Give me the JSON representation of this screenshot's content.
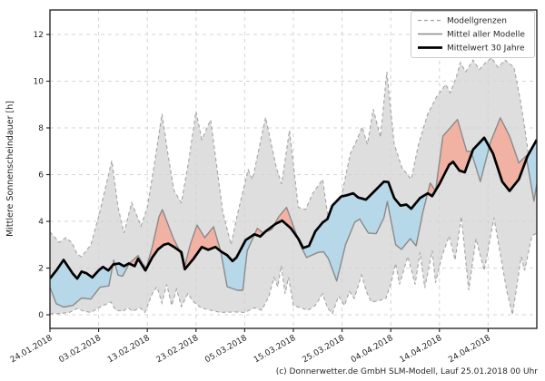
{
  "footer": "(c) Donnerwetter.de GmbH SLM-Modell, Lauf 25.01.2018 00 Uhr",
  "colors": {
    "band_fill": "#dedede",
    "band_edge": "#a3a3a3",
    "model_mean_line": "#8a8a8a",
    "mean30_line": "#000000",
    "above_fill_red": "#f1b2a4",
    "below_fill_blue": "#b7d8e8",
    "grid": "#d4d4d4",
    "spine": "#1a1a1a",
    "legend_border": "#cccccc",
    "text": "#262626"
  },
  "legend": {
    "items": [
      {
        "label": "Modellgrenzen",
        "style": "dashed-gray"
      },
      {
        "label": "Mittel aller Modelle",
        "style": "solid-gray"
      },
      {
        "label": "Mittelwert 30 Jahre",
        "style": "thick-black"
      }
    ]
  },
  "chart_data": {
    "type": "line",
    "title": "",
    "xlabel": "",
    "ylabel": "Mittlere Sonnenscheindauer [h]",
    "x_unit": "days since 24.01.2018",
    "x_range": [
      0,
      100
    ],
    "y_ticks": [
      0,
      2,
      4,
      6,
      8,
      10,
      12
    ],
    "y_view_range": [
      -0.58,
      13.05
    ],
    "grid": true,
    "legend_position": "upper right",
    "x_tick_days": [
      0,
      10,
      20,
      30,
      40,
      50,
      60,
      70,
      80,
      90
    ],
    "x_tick_labels": [
      "24.01.2018",
      "03.02.2018",
      "13.02.2018",
      "23.02.2018",
      "05.03.2018",
      "15.03.2018",
      "25.03.2018",
      "04.04.2018",
      "14.04.2018",
      "24.04.2018"
    ],
    "band_upper": [
      [
        0,
        3.55
      ],
      [
        1.9,
        3.1
      ],
      [
        3.2,
        3.3
      ],
      [
        4.5,
        3.1
      ],
      [
        5.6,
        2.6
      ],
      [
        6.5,
        2.48
      ],
      [
        8.4,
        3.0
      ],
      [
        10,
        4.2
      ],
      [
        12.7,
        6.6
      ],
      [
        14,
        4.6
      ],
      [
        15.2,
        3.5
      ],
      [
        16.8,
        4.8
      ],
      [
        18.7,
        3.8
      ],
      [
        20,
        4.6
      ],
      [
        21.5,
        6.5
      ],
      [
        23,
        8.6
      ],
      [
        24.3,
        6.8
      ],
      [
        25.5,
        5.3
      ],
      [
        27,
        4.8
      ],
      [
        28.5,
        6.6
      ],
      [
        30,
        8.7
      ],
      [
        31.2,
        7.5
      ],
      [
        33,
        8.35
      ],
      [
        34.3,
        6.3
      ],
      [
        35.5,
        4.4
      ],
      [
        37.2,
        3.0
      ],
      [
        38.5,
        4.3
      ],
      [
        40.7,
        6.2
      ],
      [
        41.6,
        5.8
      ],
      [
        44.3,
        8.45
      ],
      [
        46.5,
        6.3
      ],
      [
        47.6,
        5.6
      ],
      [
        49.2,
        7.9
      ],
      [
        51,
        4.6
      ],
      [
        52.5,
        4.5
      ],
      [
        54,
        5.2
      ],
      [
        56,
        5.8
      ],
      [
        57.5,
        3.6
      ],
      [
        58.9,
        1.6
      ],
      [
        60,
        5.2
      ],
      [
        61.7,
        6.9
      ],
      [
        63,
        7.46
      ],
      [
        64.1,
        8.04
      ],
      [
        65.2,
        7.3
      ],
      [
        66.4,
        8.8
      ],
      [
        67.9,
        7.6
      ],
      [
        69.2,
        10.4
      ],
      [
        70.7,
        7.3
      ],
      [
        72.3,
        6.3
      ],
      [
        74.2,
        5.8
      ],
      [
        75.7,
        7.3
      ],
      [
        77.6,
        8.6
      ],
      [
        79.4,
        9.33
      ],
      [
        81.3,
        9.86
      ],
      [
        82.2,
        9.5
      ],
      [
        83.5,
        10.2
      ],
      [
        84.3,
        10.8
      ],
      [
        85.4,
        10.4
      ],
      [
        86.9,
        10.9
      ],
      [
        88.2,
        10.5
      ],
      [
        89.5,
        10.8
      ],
      [
        90.7,
        11.0
      ],
      [
        92,
        10.6
      ],
      [
        93.5,
        10.9
      ],
      [
        95.3,
        10.6
      ],
      [
        96.6,
        9.2
      ],
      [
        97.5,
        8.04
      ],
      [
        99.3,
        5.3
      ],
      [
        100,
        7.6
      ]
    ],
    "band_lower": [
      [
        0,
        0.05
      ],
      [
        2,
        0.05
      ],
      [
        4,
        0.1
      ],
      [
        5.6,
        0.27
      ],
      [
        7,
        0.15
      ],
      [
        8.4,
        0.1
      ],
      [
        10,
        0.3
      ],
      [
        12.5,
        0.55
      ],
      [
        13.5,
        0.2
      ],
      [
        15,
        0.15
      ],
      [
        16,
        0.3
      ],
      [
        17,
        0.15
      ],
      [
        18.5,
        0.3
      ],
      [
        19.5,
        0.1
      ],
      [
        21,
        0.9
      ],
      [
        22,
        1.2
      ],
      [
        23,
        0.5
      ],
      [
        24,
        1.3
      ],
      [
        25,
        0.4
      ],
      [
        26,
        1.1
      ],
      [
        27,
        0.35
      ],
      [
        28.3,
        0.9
      ],
      [
        29.5,
        0.55
      ],
      [
        31,
        0.3
      ],
      [
        33,
        0.2
      ],
      [
        35,
        0.1
      ],
      [
        38,
        0.12
      ],
      [
        40,
        0.1
      ],
      [
        42,
        0.3
      ],
      [
        43.5,
        0.2
      ],
      [
        45,
        0.8
      ],
      [
        46,
        1.6
      ],
      [
        46.8,
        1.2
      ],
      [
        47.5,
        2.1
      ],
      [
        48.3,
        0.9
      ],
      [
        49,
        1.6
      ],
      [
        50,
        0.4
      ],
      [
        51.5,
        0.3
      ],
      [
        53,
        0.2
      ],
      [
        54.5,
        0.4
      ],
      [
        56,
        0.9
      ],
      [
        57,
        0.3
      ],
      [
        58,
        0.05
      ],
      [
        59.3,
        0.8
      ],
      [
        60.5,
        0.4
      ],
      [
        61.5,
        1.0
      ],
      [
        62.5,
        0.7
      ],
      [
        64,
        1.7
      ],
      [
        65,
        1.0
      ],
      [
        66,
        0.55
      ],
      [
        67.5,
        0.6
      ],
      [
        69,
        0.7
      ],
      [
        70,
        1.3
      ],
      [
        71,
        2.2
      ],
      [
        71.8,
        1.3
      ],
      [
        73.5,
        2.5
      ],
      [
        75,
        1.3
      ],
      [
        76,
        2.67
      ],
      [
        77,
        1.15
      ],
      [
        78.5,
        2.75
      ],
      [
        79.2,
        1.37
      ],
      [
        80.5,
        2.5
      ],
      [
        82,
        3.38
      ],
      [
        83.2,
        2.34
      ],
      [
        84.5,
        4.2
      ],
      [
        86,
        1.05
      ],
      [
        87.5,
        3.26
      ],
      [
        89.2,
        1.89
      ],
      [
        91.2,
        4.15
      ],
      [
        93.8,
        1.05
      ],
      [
        95,
        0.0
      ],
      [
        96.8,
        2.48
      ],
      [
        97.5,
        1.9
      ],
      [
        99,
        3.38
      ],
      [
        100,
        3.5
      ]
    ],
    "model_mean": [
      [
        0,
        1.18
      ],
      [
        1.3,
        0.47
      ],
      [
        2.8,
        0.33
      ],
      [
        4.7,
        0.4
      ],
      [
        6.5,
        0.72
      ],
      [
        8.4,
        0.67
      ],
      [
        10.3,
        1.18
      ],
      [
        12.1,
        1.24
      ],
      [
        13.1,
        2.34
      ],
      [
        14,
        1.7
      ],
      [
        14.9,
        1.65
      ],
      [
        16.3,
        2.2
      ],
      [
        18.1,
        2.54
      ],
      [
        19,
        2.2
      ],
      [
        19.8,
        2.0
      ],
      [
        21,
        2.9
      ],
      [
        22.4,
        4.2
      ],
      [
        23.1,
        4.5
      ],
      [
        24.2,
        3.9
      ],
      [
        25.3,
        3.3
      ],
      [
        26.5,
        2.8
      ],
      [
        27.7,
        2.1
      ],
      [
        28.8,
        3.0
      ],
      [
        30.2,
        3.84
      ],
      [
        31.8,
        3.3
      ],
      [
        33.6,
        3.77
      ],
      [
        35.1,
        2.7
      ],
      [
        36.4,
        1.2
      ],
      [
        38.5,
        1.05
      ],
      [
        39.6,
        1.05
      ],
      [
        40.5,
        2.73
      ],
      [
        42.6,
        3.7
      ],
      [
        43.8,
        3.5
      ],
      [
        45.5,
        3.65
      ],
      [
        47,
        4.2
      ],
      [
        48.6,
        4.6
      ],
      [
        50,
        3.8
      ],
      [
        51.4,
        3.0
      ],
      [
        52.7,
        2.45
      ],
      [
        55.1,
        2.67
      ],
      [
        56.2,
        2.7
      ],
      [
        57.2,
        2.4
      ],
      [
        58.9,
        1.45
      ],
      [
        60.7,
        3.0
      ],
      [
        62.6,
        3.96
      ],
      [
        63.6,
        4.1
      ],
      [
        65.4,
        3.5
      ],
      [
        67,
        3.47
      ],
      [
        68.6,
        4.15
      ],
      [
        69.3,
        4.85
      ],
      [
        71,
        3.0
      ],
      [
        72.2,
        2.8
      ],
      [
        74,
        3.26
      ],
      [
        75.2,
        2.95
      ],
      [
        76.6,
        4.4
      ],
      [
        78.1,
        5.64
      ],
      [
        79.2,
        5.3
      ],
      [
        80.7,
        7.65
      ],
      [
        82.2,
        8.0
      ],
      [
        83.7,
        8.36
      ],
      [
        85.6,
        7.0
      ],
      [
        86.5,
        7.0
      ],
      [
        88.4,
        5.7
      ],
      [
        90.5,
        7.4
      ],
      [
        92.5,
        8.43
      ],
      [
        94.4,
        7.65
      ],
      [
        96.3,
        6.5
      ],
      [
        97.8,
        6.8
      ],
      [
        99.4,
        4.87
      ],
      [
        100,
        5.6
      ]
    ],
    "mean_30y": [
      [
        0,
        1.55
      ],
      [
        1.5,
        1.95
      ],
      [
        2.8,
        2.35
      ],
      [
        4.7,
        1.76
      ],
      [
        5.6,
        1.55
      ],
      [
        6.5,
        1.85
      ],
      [
        7.5,
        1.78
      ],
      [
        8.7,
        1.6
      ],
      [
        10,
        1.9
      ],
      [
        10.9,
        2.05
      ],
      [
        12,
        1.9
      ],
      [
        13,
        2.15
      ],
      [
        14.2,
        2.2
      ],
      [
        15.2,
        2.08
      ],
      [
        16.2,
        2.2
      ],
      [
        17.4,
        2.08
      ],
      [
        18.1,
        2.4
      ],
      [
        19.6,
        1.9
      ],
      [
        21,
        2.45
      ],
      [
        22.2,
        2.8
      ],
      [
        23.4,
        3.0
      ],
      [
        24.3,
        3.05
      ],
      [
        25.5,
        2.9
      ],
      [
        27,
        2.68
      ],
      [
        27.7,
        1.95
      ],
      [
        29.5,
        2.4
      ],
      [
        31.2,
        2.9
      ],
      [
        32.5,
        2.78
      ],
      [
        34,
        2.9
      ],
      [
        35.2,
        2.7
      ],
      [
        36.4,
        2.55
      ],
      [
        37.5,
        2.3
      ],
      [
        38.3,
        2.45
      ],
      [
        40.2,
        3.2
      ],
      [
        42,
        3.45
      ],
      [
        43.2,
        3.35
      ],
      [
        44.3,
        3.57
      ],
      [
        46.4,
        3.9
      ],
      [
        47.7,
        4.03
      ],
      [
        49.5,
        3.7
      ],
      [
        51,
        3.26
      ],
      [
        52,
        2.86
      ],
      [
        53.2,
        2.95
      ],
      [
        54.5,
        3.57
      ],
      [
        56,
        3.95
      ],
      [
        57,
        4.1
      ],
      [
        58,
        4.67
      ],
      [
        59.8,
        5.06
      ],
      [
        61,
        5.12
      ],
      [
        62.3,
        5.2
      ],
      [
        63.3,
        5.02
      ],
      [
        64.9,
        4.93
      ],
      [
        66.7,
        5.3
      ],
      [
        68.6,
        5.7
      ],
      [
        69.5,
        5.68
      ],
      [
        70.7,
        5.0
      ],
      [
        72,
        4.67
      ],
      [
        73.2,
        4.72
      ],
      [
        74.2,
        4.54
      ],
      [
        76,
        5.0
      ],
      [
        77.6,
        5.2
      ],
      [
        78.5,
        5.08
      ],
      [
        80,
        5.6
      ],
      [
        82,
        6.42
      ],
      [
        82.8,
        6.55
      ],
      [
        84.1,
        6.17
      ],
      [
        85.2,
        6.1
      ],
      [
        86.9,
        7.07
      ],
      [
        89.2,
        7.58
      ],
      [
        91,
        6.9
      ],
      [
        92.9,
        5.7
      ],
      [
        94.4,
        5.3
      ],
      [
        96.3,
        5.8
      ],
      [
        98.1,
        6.8
      ],
      [
        100,
        7.5
      ]
    ]
  }
}
